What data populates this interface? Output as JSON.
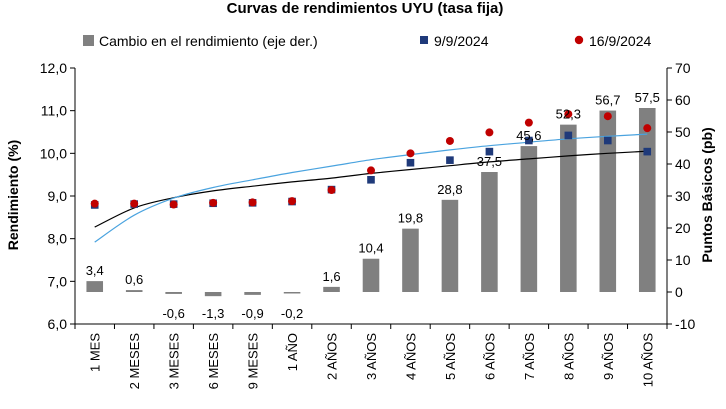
{
  "chart_data": {
    "type": "bar",
    "title": "Curvas de rendimientos UYU (tasa fija)",
    "ylabel_left": "Rendimiento (%)",
    "ylabel_right": "Puntos Básicos (pb)",
    "ylim_left": [
      6.0,
      12.0
    ],
    "ylim_right": [
      -10,
      70
    ],
    "yticks_left": [
      "6,0",
      "7,0",
      "8,0",
      "9,0",
      "10,0",
      "11,0",
      "12,0"
    ],
    "yticks_right": [
      "-10",
      "0",
      "10",
      "20",
      "30",
      "40",
      "50",
      "60",
      "70"
    ],
    "categories": [
      "1 MES",
      "2 MESES",
      "3 MESES",
      "6 MESES",
      "9 MESES",
      "1 AÑO",
      "2 AÑOS",
      "3 AÑOS",
      "4 AÑOS",
      "5 AÑOS",
      "6 AÑOS",
      "7 AÑOS",
      "8 AÑOS",
      "9 AÑOS",
      "10 AÑOS"
    ],
    "legend": {
      "position": "top",
      "items": [
        "Cambio en el rendimiento (eje der.)",
        "9/9/2024",
        "16/9/2024"
      ]
    },
    "series": [
      {
        "name": "Cambio en el rendimiento (eje der.)",
        "type": "bar",
        "axis": "right",
        "color": "#808080",
        "values": [
          3.4,
          0.6,
          -0.6,
          -1.3,
          -0.9,
          -0.2,
          1.6,
          10.4,
          19.8,
          28.8,
          37.5,
          45.6,
          52.3,
          56.7,
          57.5
        ],
        "labels": [
          "3,4",
          "0,6",
          "-0,6",
          "-1,3",
          "-0,9",
          "-0,2",
          "1,6",
          "10,4",
          "19,8",
          "28,8",
          "37,5",
          "45,6",
          "52,3",
          "56,7",
          "57,5"
        ]
      },
      {
        "name": "9/9/2024",
        "type": "scatter",
        "axis": "left",
        "color": "#1f3a7a",
        "marker": "square",
        "values": [
          8.79,
          8.81,
          8.81,
          8.83,
          8.84,
          8.87,
          9.15,
          9.38,
          9.78,
          9.84,
          10.04,
          10.3,
          10.42,
          10.3,
          10.04
        ]
      },
      {
        "name": "16/9/2024",
        "type": "scatter",
        "axis": "left",
        "color": "#c00000",
        "marker": "circle",
        "values": [
          8.82,
          8.82,
          8.8,
          8.84,
          8.85,
          8.88,
          9.14,
          9.6,
          10.0,
          10.29,
          10.49,
          10.72,
          10.92,
          10.87,
          10.59
        ]
      }
    ],
    "trendlines": [
      {
        "of": "9/9/2024",
        "color": "#000000",
        "values": [
          8.27,
          8.72,
          8.96,
          9.12,
          9.23,
          9.33,
          9.42,
          9.53,
          9.62,
          9.71,
          9.8,
          9.87,
          9.94,
          10.0,
          10.05
        ]
      },
      {
        "of": "16/9/2024",
        "color": "#4aa3df",
        "values": [
          7.92,
          8.55,
          8.95,
          9.2,
          9.38,
          9.55,
          9.7,
          9.85,
          9.97,
          10.08,
          10.18,
          10.26,
          10.34,
          10.4,
          10.45
        ]
      }
    ]
  }
}
